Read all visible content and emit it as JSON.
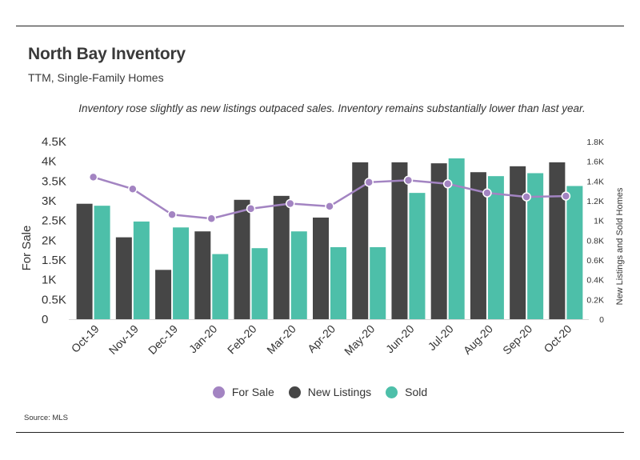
{
  "header": {
    "title": "North Bay Inventory",
    "subtitle": "TTM, Single-Family Homes",
    "note": "Inventory rose slightly as new listings outpaced sales. Inventory remains substantially lower than last year."
  },
  "footer": {
    "source": "Source:  MLS"
  },
  "colors": {
    "for_sale": "#a384c2",
    "new_listings": "#464646",
    "sold": "#4dbfa9"
  },
  "chart_data": {
    "type": "bar",
    "categories": [
      "Oct-19",
      "Nov-19",
      "Dec-19",
      "Jan-20",
      "Feb-20",
      "Mar-20",
      "Apr-20",
      "May-20",
      "Jun-20",
      "Jul-20",
      "Aug-20",
      "Sep-20",
      "Oct-20"
    ],
    "series": [
      {
        "name": "For Sale",
        "type": "line",
        "axis": "left",
        "values": [
          3600,
          3300,
          2650,
          2550,
          2800,
          2930,
          2860,
          3470,
          3520,
          3430,
          3200,
          3100,
          3120
        ]
      },
      {
        "name": "New Listings",
        "type": "bar",
        "axis": "right",
        "values": [
          1170,
          830,
          500,
          890,
          1210,
          1250,
          1030,
          1590,
          1590,
          1580,
          1490,
          1550,
          1590
        ]
      },
      {
        "name": "Sold",
        "type": "bar",
        "axis": "right",
        "values": [
          1150,
          990,
          930,
          660,
          720,
          890,
          730,
          730,
          1280,
          1630,
          1450,
          1480,
          1350
        ]
      }
    ],
    "ylabel": "For Sale",
    "y2label": "New Listings and Sold Homes",
    "ylim": [
      0,
      4500
    ],
    "y2lim": [
      0,
      1800
    ],
    "yticks": [
      "0",
      "0.5K",
      "1K",
      "1.5K",
      "2K",
      "2.5K",
      "3K",
      "3.5K",
      "4K",
      "4.5K"
    ],
    "y2ticks": [
      "0",
      "0.2K",
      "0.4K",
      "0.6K",
      "0.8K",
      "1K",
      "1.2K",
      "1.4K",
      "1.6K",
      "1.8K"
    ],
    "legend": [
      "For Sale",
      "New Listings",
      "Sold"
    ],
    "legend_position": "bottom",
    "grid": false
  }
}
